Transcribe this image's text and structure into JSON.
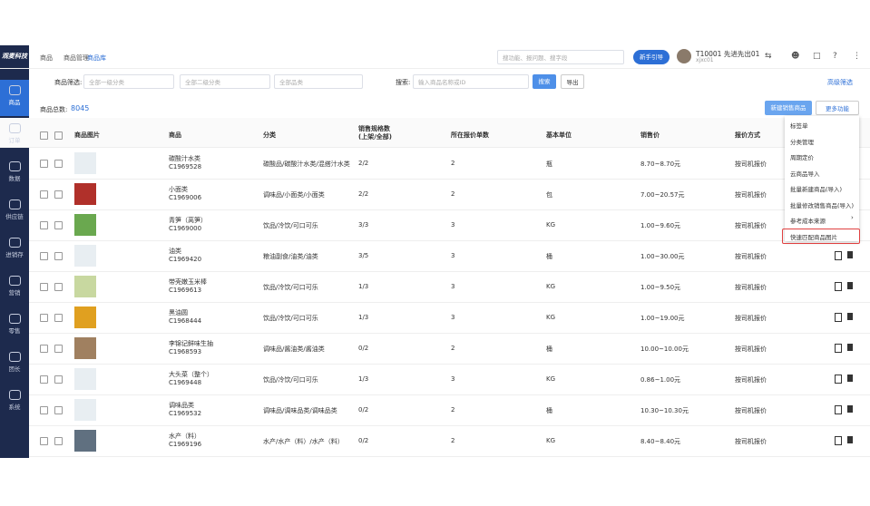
{
  "sidebar": {
    "logo": "观麦科技",
    "items": [
      "商品",
      "订单",
      "数据",
      "供应链",
      "进销存",
      "营销",
      "零售",
      "团长",
      "系统"
    ]
  },
  "header": {
    "breadcrumb": [
      "商品",
      "商品管理",
      "商品库"
    ],
    "search": "搜功能、报问题、搜字段",
    "guide": "新手引导",
    "user": "T10001 先进先出01",
    "account": "xjxc01"
  },
  "filter": {
    "label": "商品筛选:",
    "selects": [
      "全部一级分类",
      "全部二级分类",
      "全部品类"
    ],
    "search_label": "搜索:",
    "search_placeholder": "输入商品名称或ID",
    "search_button": "搜索",
    "export": "导出",
    "advanced": "高级筛选"
  },
  "summary": {
    "label": "商品总数:",
    "count": "8045",
    "new_button": "新建销售商品",
    "more_button": "更多功能"
  },
  "menu": [
    "标签单",
    "分类管理",
    "周期定价",
    "云商品导入",
    "批量新建商品(导入)",
    "批量修改销售商品(导入)",
    "参考成本来源",
    "快速匹配商品图片"
  ],
  "table": {
    "columns": [
      "商品图片",
      "商品",
      "分类",
      "销售规格数\n(上架/全部)",
      "所在报价单数",
      "基本单位",
      "销售价",
      "报价方式"
    ],
    "rows": [
      [
        "碳酸汁水类",
        "C1969528",
        "碳酸品/碳酸汁水类/混搭汁水类",
        "2/2",
        "2",
        "瓶",
        "8.70~8.70元",
        "按司机报价"
      ],
      [
        "小面类",
        "C1969006",
        "调味品/小面类/小面类",
        "2/2",
        "2",
        "包",
        "7.00~20.57元",
        "按司机报价"
      ],
      [
        "青笋（莴笋）",
        "C1969000",
        "饮品/冷饮/可口可乐",
        "3/3",
        "3",
        "KG",
        "1.00~9.60元",
        "按司机报价"
      ],
      [
        "油类",
        "C1969420",
        "粮油副食/油类/油类",
        "3/5",
        "3",
        "桶",
        "1.00~30.00元",
        "按司机报价"
      ],
      [
        "带壳嫩玉米棒",
        "C1969613",
        "饮品/冷饮/可口可乐",
        "1/3",
        "3",
        "KG",
        "1.00~9.50元",
        "按司机报价"
      ],
      [
        "黑油圆",
        "C1968444",
        "饮品/冷饮/可口可乐",
        "1/3",
        "3",
        "KG",
        "1.00~19.00元",
        "按司机报价"
      ],
      [
        "李锦记鲜味生抽",
        "C1968593",
        "调味品/酱油类/酱油类",
        "0/2",
        "2",
        "桶",
        "10.00~10.00元",
        "按司机报价"
      ],
      [
        "大头菜（整个）",
        "C1969448",
        "饮品/冷饮/可口可乐",
        "1/3",
        "3",
        "KG",
        "0.86~1.00元",
        "按司机报价"
      ],
      [
        "调味品类",
        "C1969532",
        "调味品/调味品类/调味品类",
        "0/2",
        "2",
        "桶",
        "10.30~10.30元",
        "按司机报价"
      ],
      [
        "水产（料）",
        "C1969196",
        "水产/水产（料）/水产（料）",
        "0/2",
        "2",
        "KG",
        "8.40~8.40元",
        "按司机报价"
      ]
    ]
  }
}
